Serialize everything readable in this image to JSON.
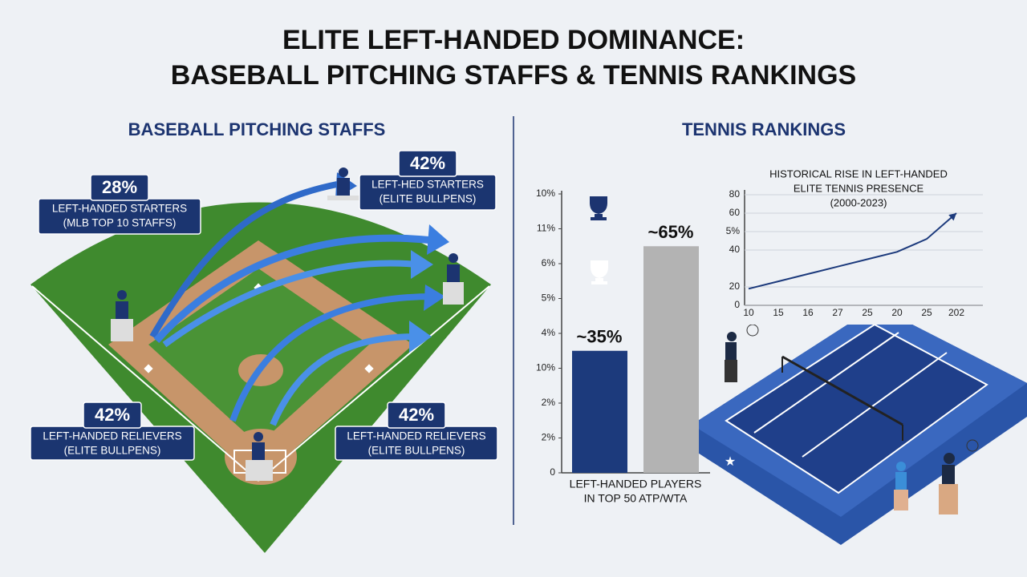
{
  "title_lines": [
    "ELITE LEFT-HANDED DOMINANCE:",
    "BASEBALL PITCHING STAFFS & TENNIS RANKINGS"
  ],
  "baseball": {
    "heading": "BASEBALL PITCHING STAFFS",
    "callouts": [
      {
        "value": "28%",
        "lines": [
          "LEFT-HANDED STARTERS",
          "(MLB TOP 10 STAFFS)"
        ]
      },
      {
        "value": "42%",
        "lines": [
          "LEFT-HED STARTERS",
          "(ELITE BULLPENS)"
        ]
      },
      {
        "value": "42%",
        "lines": [
          "LEFT-HANDED RELIEVERS",
          "(ELITE BULLPENS)"
        ]
      },
      {
        "value": "42%",
        "lines": [
          "LEFT-HANDED RELIEVERS",
          "(ELITE BULLPENS)"
        ]
      }
    ]
  },
  "tennis": {
    "heading": "TENNIS RANKINGS"
  },
  "chart_data": [
    {
      "type": "bar",
      "categories": [
        null,
        null
      ],
      "values": [
        35,
        65
      ],
      "value_labels": [
        "~35%",
        "~65%"
      ],
      "colors": [
        "#1c3a7c",
        "#b3b3b3"
      ],
      "xlabel": [
        "LEFT-HANDED PLAYERS",
        "IN TOP 50 ATP/WTA"
      ],
      "ylim": [
        0,
        80
      ],
      "yticks": [
        0,
        {
          "value": 10,
          "label": "2%"
        },
        {
          "value": 20,
          "label": "2%"
        },
        {
          "value": 30,
          "label": "10%"
        },
        {
          "value": 40,
          "label": "4%"
        },
        {
          "value": 50,
          "label": "5%"
        },
        {
          "value": 60,
          "label": "6%"
        },
        {
          "value": 70,
          "label": "11%"
        },
        {
          "value": 80,
          "label": "10%"
        }
      ]
    },
    {
      "type": "line",
      "title": [
        "HISTORICAL RISE IN LEFT-HANDED",
        "ELITE TENNIS PRESENCE",
        "(2000-2023)"
      ],
      "categories": [
        "10",
        "15",
        "16",
        "27",
        "25",
        "20",
        "25",
        "202"
      ],
      "values": [
        9,
        13,
        17,
        21,
        25,
        29,
        36,
        50
      ],
      "color": "#1c3a7c",
      "ylim": [
        0,
        60
      ],
      "yticks": [
        0,
        {
          "value": 10,
          "label": "20"
        },
        {
          "value": 30,
          "label": "40"
        },
        {
          "value": 40,
          "label": "5%"
        },
        {
          "value": 50,
          "label": "60"
        },
        {
          "value": 60,
          "label": "80"
        }
      ]
    }
  ]
}
